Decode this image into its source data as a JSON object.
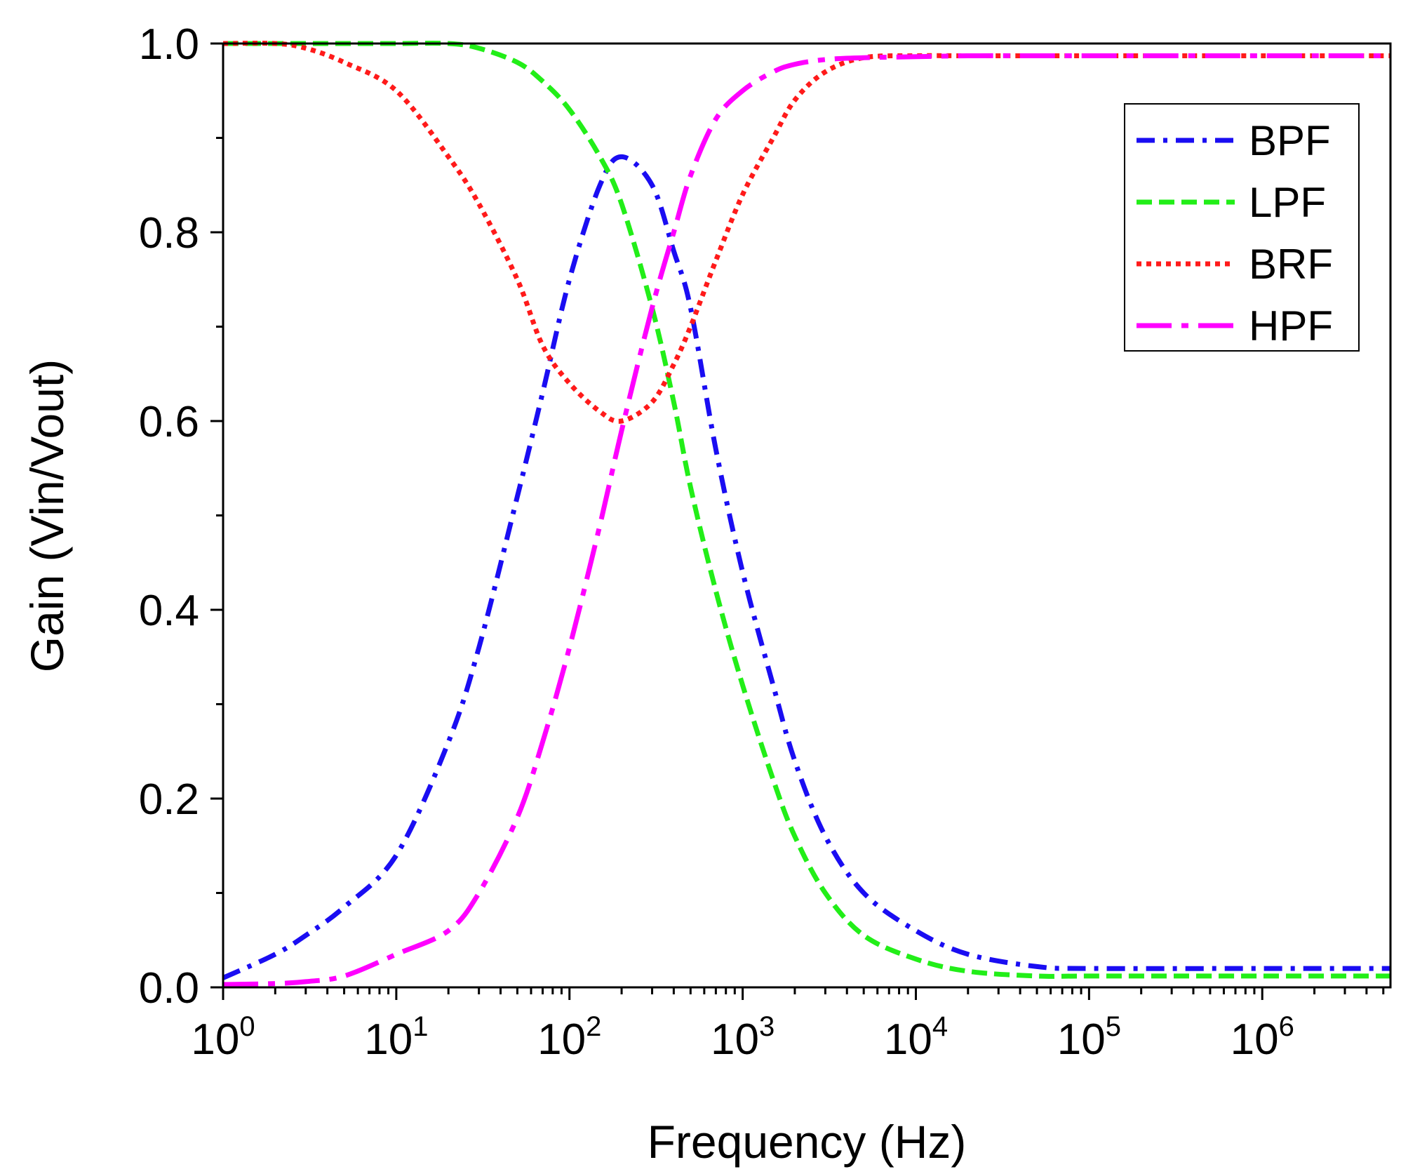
{
  "chart_data": {
    "type": "line",
    "title": "",
    "xlabel": "Frequency (Hz)",
    "ylabel": "Gain (Vin/Vout)",
    "xscale": "log",
    "xlim": [
      1,
      5500000
    ],
    "ylim": [
      0.0,
      1.0
    ],
    "grid": false,
    "legend_position": "top-right",
    "x_ticks": [
      {
        "value": 1,
        "base": "10",
        "exp": "0"
      },
      {
        "value": 10,
        "base": "10",
        "exp": "1"
      },
      {
        "value": 100,
        "base": "10",
        "exp": "2"
      },
      {
        "value": 1000,
        "base": "10",
        "exp": "3"
      },
      {
        "value": 10000,
        "base": "10",
        "exp": "4"
      },
      {
        "value": 100000,
        "base": "10",
        "exp": "5"
      },
      {
        "value": 1000000,
        "base": "10",
        "exp": "6"
      }
    ],
    "y_ticks": [
      {
        "value": 0.0,
        "label": "0.0"
      },
      {
        "value": 0.2,
        "label": "0.2"
      },
      {
        "value": 0.4,
        "label": "0.4"
      },
      {
        "value": 0.6,
        "label": "0.6"
      },
      {
        "value": 0.8,
        "label": "0.8"
      },
      {
        "value": 1.0,
        "label": "1.0"
      }
    ],
    "x": [
      1,
      2,
      3,
      5,
      10,
      20,
      30,
      50,
      70,
      100,
      150,
      200,
      300,
      400,
      500,
      700,
      1000,
      1500,
      2000,
      3000,
      5000,
      10000,
      20000,
      50000,
      100000,
      1000000,
      5500000
    ],
    "series": [
      {
        "name": "BPF",
        "color": "#1a0df2",
        "dash": "dashdot",
        "values": [
          0.01,
          0.035,
          0.055,
          0.085,
          0.14,
          0.26,
          0.36,
          0.52,
          0.63,
          0.75,
          0.85,
          0.88,
          0.85,
          0.78,
          0.72,
          0.57,
          0.44,
          0.32,
          0.24,
          0.16,
          0.1,
          0.06,
          0.035,
          0.022,
          0.02,
          0.02,
          0.02
        ]
      },
      {
        "name": "LPF",
        "color": "#22ee18",
        "dash": "dash",
        "values": [
          1.0,
          1.0,
          1.0,
          1.0,
          1.0,
          1.0,
          0.995,
          0.98,
          0.96,
          0.93,
          0.88,
          0.83,
          0.72,
          0.62,
          0.53,
          0.42,
          0.32,
          0.22,
          0.16,
          0.1,
          0.055,
          0.03,
          0.017,
          0.012,
          0.012,
          0.012,
          0.012
        ]
      },
      {
        "name": "BRF",
        "color": "#ff1a1a",
        "dash": "dot",
        "values": [
          1.0,
          1.0,
          0.995,
          0.98,
          0.95,
          0.88,
          0.83,
          0.75,
          0.68,
          0.64,
          0.61,
          0.6,
          0.62,
          0.66,
          0.7,
          0.77,
          0.84,
          0.9,
          0.94,
          0.97,
          0.985,
          0.987,
          0.987,
          0.987,
          0.987,
          0.987,
          0.987
        ]
      },
      {
        "name": "HPF",
        "color": "#ff00ff",
        "dash": "longdashdot",
        "values": [
          0.003,
          0.004,
          0.006,
          0.012,
          0.035,
          0.06,
          0.1,
          0.18,
          0.26,
          0.36,
          0.49,
          0.59,
          0.72,
          0.8,
          0.86,
          0.92,
          0.95,
          0.97,
          0.978,
          0.983,
          0.985,
          0.986,
          0.987,
          0.987,
          0.987,
          0.987,
          0.987
        ]
      }
    ]
  }
}
